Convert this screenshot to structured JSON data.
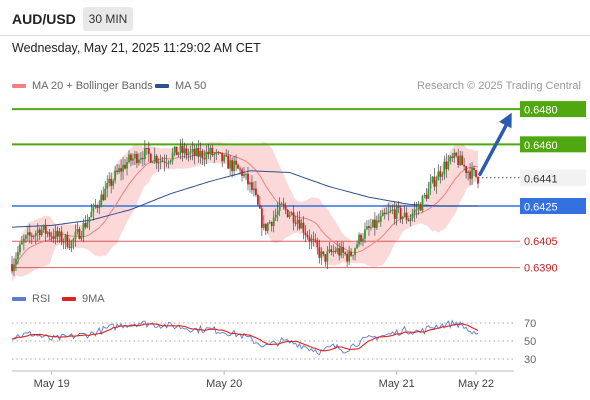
{
  "header": {
    "symbol": "AUD/USD",
    "timeframe": "30 MIN",
    "datetime": "Wednesday, May 21, 2025 11:29:02 AM CET"
  },
  "legend": {
    "ma20_label": "MA 20 + Bollinger Bands",
    "ma20_color": "#f08080",
    "ma50_label": "MA 50",
    "ma50_color": "#2f4f8f",
    "credit": "Research © 2025 Trading Central"
  },
  "rsi_legend": {
    "rsi_label": "RSI",
    "rsi_color": "#5b7bd5",
    "ma9_label": "9MA",
    "ma9_color": "#dd2222"
  },
  "chart_data": [
    {
      "type": "candlestick",
      "ylim": [
        0.6383,
        0.6488
      ],
      "x_range": [
        0,
        235
      ],
      "x_tick_labels": [
        {
          "label": "May 19",
          "x": 20
        },
        {
          "label": "May 20",
          "x": 107
        },
        {
          "label": "May 21",
          "x": 194
        },
        {
          "label": "May 22",
          "x": 234
        }
      ],
      "price_anchors": [
        [
          0,
          0.6392
        ],
        [
          6,
          0.6405
        ],
        [
          14,
          0.6412
        ],
        [
          22,
          0.6408
        ],
        [
          30,
          0.6404
        ],
        [
          37,
          0.6415
        ],
        [
          44,
          0.6428
        ],
        [
          52,
          0.6442
        ],
        [
          58,
          0.645
        ],
        [
          66,
          0.6455
        ],
        [
          76,
          0.6451
        ],
        [
          84,
          0.6456
        ],
        [
          92,
          0.6454
        ],
        [
          100,
          0.6455
        ],
        [
          108,
          0.645
        ],
        [
          116,
          0.6444
        ],
        [
          122,
          0.6432
        ],
        [
          127,
          0.6412
        ],
        [
          136,
          0.6424
        ],
        [
          144,
          0.6418
        ],
        [
          151,
          0.6405
        ],
        [
          157,
          0.6395
        ],
        [
          163,
          0.64
        ],
        [
          170,
          0.6396
        ],
        [
          176,
          0.6408
        ],
        [
          184,
          0.6415
        ],
        [
          192,
          0.6422
        ],
        [
          200,
          0.6418
        ],
        [
          206,
          0.6426
        ],
        [
          212,
          0.6438
        ],
        [
          218,
          0.6448
        ],
        [
          224,
          0.6452
        ],
        [
          229,
          0.6446
        ],
        [
          235,
          0.6441
        ]
      ],
      "ma50_anchors": [
        [
          0,
          0.6413
        ],
        [
          20,
          0.6414
        ],
        [
          40,
          0.6417
        ],
        [
          60,
          0.6423
        ],
        [
          80,
          0.6432
        ],
        [
          100,
          0.6439
        ],
        [
          120,
          0.6445
        ],
        [
          140,
          0.6444
        ],
        [
          160,
          0.6436
        ],
        [
          180,
          0.643
        ],
        [
          200,
          0.6426
        ],
        [
          215,
          0.6425
        ],
        [
          235,
          0.6425
        ]
      ],
      "levels": [
        {
          "price": 0.648,
          "label": "0.6480",
          "type": "resistance",
          "color": "#4fa80f"
        },
        {
          "price": 0.646,
          "label": "0.6460",
          "type": "resistance",
          "color": "#4fa80f"
        },
        {
          "price": 0.6441,
          "label": "0.6441",
          "type": "last",
          "color": "#333333"
        },
        {
          "price": 0.6425,
          "label": "0.6425",
          "type": "pivot",
          "color": "#3370e0"
        },
        {
          "price": 0.6405,
          "label": "0.6405",
          "type": "support",
          "color": "#cc2222"
        },
        {
          "price": 0.639,
          "label": "0.6390",
          "type": "support",
          "color": "#cc2222"
        }
      ],
      "arrow": {
        "from": [
          236,
          0.6443
        ],
        "to": [
          252,
          0.6478
        ],
        "color": "#2a5bb0"
      },
      "colors": {
        "up": "#2e9e2e",
        "down": "#cc2222",
        "bands": "#f9cccc"
      }
    },
    {
      "type": "line",
      "title": "RSI",
      "ylim": [
        20,
        80
      ],
      "levels": [
        70,
        50,
        30
      ],
      "rsi_anchors": [
        [
          0,
          55
        ],
        [
          10,
          58
        ],
        [
          20,
          52
        ],
        [
          30,
          55
        ],
        [
          40,
          58
        ],
        [
          48,
          64
        ],
        [
          56,
          68
        ],
        [
          64,
          70
        ],
        [
          74,
          68
        ],
        [
          84,
          66
        ],
        [
          92,
          63
        ],
        [
          100,
          63
        ],
        [
          108,
          60
        ],
        [
          116,
          56
        ],
        [
          122,
          50
        ],
        [
          128,
          44
        ],
        [
          136,
          50
        ],
        [
          144,
          47
        ],
        [
          150,
          42
        ],
        [
          156,
          38
        ],
        [
          162,
          44
        ],
        [
          168,
          40
        ],
        [
          174,
          48
        ],
        [
          182,
          54
        ],
        [
          190,
          57
        ],
        [
          198,
          62
        ],
        [
          206,
          60
        ],
        [
          212,
          66
        ],
        [
          218,
          68
        ],
        [
          224,
          70
        ],
        [
          228,
          66
        ],
        [
          234,
          55
        ]
      ]
    }
  ]
}
